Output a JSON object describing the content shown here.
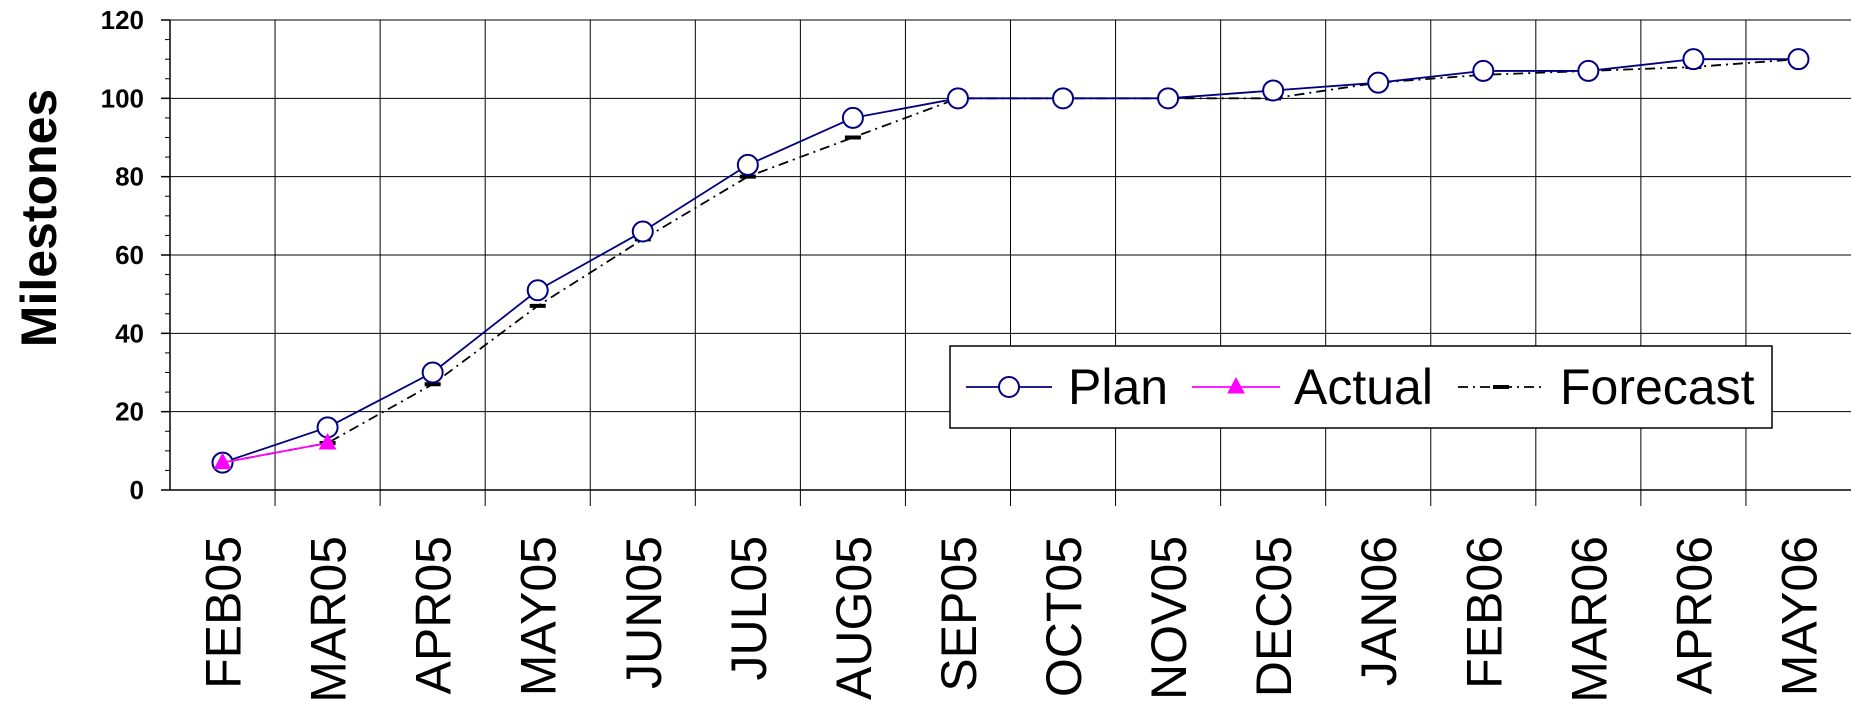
{
  "chart_data": {
    "type": "line",
    "title": "",
    "xlabel": "",
    "ylabel": "Milestones",
    "ylim": [
      0,
      120
    ],
    "yticks": [
      0,
      20,
      40,
      60,
      80,
      100,
      120
    ],
    "grid": true,
    "legend_position": "bottom-right",
    "categories": [
      "FEB05",
      "MAR05",
      "APR05",
      "MAY05",
      "JUN05",
      "JUL05",
      "AUG05",
      "SEP05",
      "OCT05",
      "NOV05",
      "DEC05",
      "JAN06",
      "FEB06",
      "MAR06",
      "APR06",
      "MAY06"
    ],
    "series": [
      {
        "name": "Plan",
        "color": "#000080",
        "marker": "circle",
        "style": "solid",
        "values": [
          7,
          16,
          30,
          51,
          66,
          83,
          95,
          100,
          100,
          100,
          102,
          104,
          107,
          107,
          110,
          110
        ]
      },
      {
        "name": "Actual",
        "color": "#ff00ff",
        "marker": "triangle",
        "style": "solid",
        "values": [
          7,
          12,
          null,
          null,
          null,
          null,
          null,
          null,
          null,
          null,
          null,
          null,
          null,
          null,
          null,
          null
        ]
      },
      {
        "name": "Forecast",
        "color": "#000000",
        "marker": "dash",
        "style": "dashdot",
        "values": [
          7,
          12,
          27,
          47,
          64,
          80,
          90,
          100,
          100,
          100,
          100,
          104,
          106,
          107,
          108,
          110
        ]
      }
    ]
  }
}
